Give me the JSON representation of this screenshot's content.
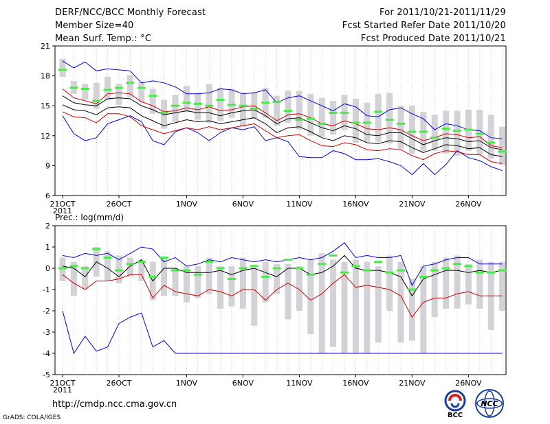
{
  "header": {
    "title": "DERF/NCC/BCC Monthly Forecast",
    "member": "Member Size=40",
    "variable": "Mean Surf. Temp.: °C",
    "period": "For 2011/10/21-2011/11/29",
    "started": "Fcst Started Refer Date 2011/10/20",
    "produced": "Fcst Produced Date 2011/10/21"
  },
  "footer": {
    "url": "http://cmdp.ncc.cma.gov.cn",
    "credit": "GrADS: COLA/IGES",
    "logo1_text": "BCC",
    "logo2_text": "NCC"
  },
  "colors": {
    "max": "#0000dd",
    "min": "#0000dd",
    "p_outer": "#cc0000",
    "median": "#000000",
    "green": "#44ee44",
    "box": "#d3d3d7"
  },
  "chart_data": [
    {
      "type": "box-ensemble",
      "title": "Mean Surf. Temp.: °C",
      "ylabel": "°C",
      "ylim": [
        6,
        21
      ],
      "yticks": [
        6,
        9,
        12,
        15,
        18,
        21
      ],
      "xtick_labels": [
        "21OCT",
        "26OCT",
        "1NOV",
        "6NOV",
        "11NOV",
        "16NOV",
        "21NOV",
        "26NOV"
      ],
      "xtick_days": [
        0,
        5,
        11,
        16,
        21,
        26,
        31,
        36
      ],
      "year_label": "2011",
      "days": 40,
      "series": [
        {
          "name": "max",
          "values": [
            19.5,
            18.8,
            19.4,
            18.5,
            18.7,
            18.6,
            18.5,
            17.3,
            17.5,
            17.3,
            16.9,
            16.2,
            16.2,
            16.3,
            16.7,
            16.6,
            16.2,
            16.3,
            16.6,
            15.3,
            15.8,
            16.0,
            15.5,
            15.0,
            14.5,
            15.2,
            14.9,
            14.0,
            13.9,
            14.6,
            14.8,
            14.2,
            13.7,
            12.6,
            13.2,
            13.0,
            12.6,
            12.5,
            11.8,
            11.7
          ]
        },
        {
          "name": "p90",
          "values": [
            16.7,
            15.8,
            15.5,
            15.2,
            16.2,
            16.3,
            16.2,
            15.4,
            15.0,
            14.4,
            14.5,
            14.8,
            14.6,
            14.9,
            14.5,
            14.6,
            14.9,
            15.0,
            14.3,
            13.5,
            14.1,
            14.2,
            13.8,
            13.2,
            13.0,
            13.5,
            13.2,
            12.7,
            12.6,
            12.8,
            12.6,
            12.0,
            11.5,
            11.8,
            12.2,
            12.1,
            11.8,
            11.9,
            11.0,
            10.8
          ]
        },
        {
          "name": "median",
          "values": [
            16.0,
            15.3,
            15.1,
            15.0,
            15.7,
            15.8,
            15.7,
            15.0,
            14.6,
            14.1,
            14.3,
            14.5,
            14.3,
            14.3,
            14.0,
            14.3,
            14.5,
            14.6,
            14.0,
            13.2,
            13.7,
            13.8,
            13.3,
            12.8,
            12.5,
            13.0,
            12.7,
            12.1,
            12.0,
            12.3,
            12.3,
            11.7,
            11.1,
            11.5,
            11.8,
            11.7,
            11.4,
            11.5,
            10.8,
            10.6
          ]
        },
        {
          "name": "p50",
          "values": [
            15.1,
            14.6,
            14.5,
            14.1,
            14.8,
            14.9,
            14.8,
            14.0,
            13.5,
            13.0,
            13.3,
            13.6,
            13.4,
            13.5,
            13.2,
            13.4,
            13.6,
            13.8,
            13.2,
            12.3,
            12.8,
            12.9,
            12.4,
            11.8,
            11.5,
            12.0,
            11.8,
            11.3,
            11.2,
            11.5,
            11.4,
            10.8,
            10.3,
            10.7,
            11.1,
            11.0,
            10.7,
            10.8,
            10.1,
            9.9
          ]
        },
        {
          "name": "p10",
          "values": [
            14.4,
            13.9,
            13.8,
            13.3,
            14.2,
            14.2,
            13.9,
            13.0,
            12.6,
            12.2,
            12.5,
            12.8,
            12.6,
            12.9,
            12.6,
            12.8,
            13.0,
            13.2,
            12.5,
            11.8,
            12.0,
            12.1,
            11.5,
            11.0,
            10.9,
            11.3,
            11.1,
            10.6,
            10.5,
            10.7,
            10.6,
            10.0,
            9.6,
            10.2,
            10.5,
            10.4,
            10.1,
            10.1,
            9.4,
            9.2
          ]
        },
        {
          "name": "min",
          "values": [
            14.0,
            12.2,
            11.5,
            11.8,
            13.2,
            13.6,
            14.0,
            13.4,
            11.5,
            11.1,
            12.4,
            12.8,
            12.3,
            11.5,
            12.3,
            12.8,
            12.6,
            12.9,
            11.5,
            11.8,
            11.4,
            9.9,
            9.8,
            9.8,
            10.5,
            10.2,
            9.6,
            9.6,
            9.7,
            9.4,
            9.0,
            8.1,
            9.2,
            8.1,
            9.1,
            10.5,
            9.8,
            9.5,
            8.9,
            8.5
          ]
        },
        {
          "name": "green",
          "values": [
            18.6,
            16.8,
            16.7,
            15.5,
            16.6,
            16.8,
            17.3,
            16.8,
            16.0,
            14.3,
            15.0,
            15.3,
            15.2,
            15.0,
            15.6,
            15.1,
            15.0,
            14.7,
            15.3,
            15.4,
            14.5,
            13.6,
            13.7,
            13.2,
            14.3,
            14.3,
            13.3,
            13.3,
            14.4,
            13.6,
            13.2,
            12.4,
            12.4,
            11.8,
            12.7,
            12.5,
            12.6,
            12.2,
            11.3,
            10.4
          ]
        },
        {
          "name": "box_high",
          "values": [
            19.7,
            17.5,
            17.2,
            17.3,
            17.9,
            17.2,
            18.1,
            17.4,
            16.7,
            15.6,
            16.1,
            17.0,
            16.3,
            17.2,
            16.8,
            16.7,
            16.3,
            16.4,
            16.8,
            16.0,
            16.5,
            16.5,
            16.2,
            15.8,
            15.5,
            16.1,
            15.7,
            15.3,
            16.2,
            16.3,
            15.0,
            15.0,
            14.4,
            14.1,
            14.5,
            14.5,
            14.6,
            14.6,
            14.1,
            12.9
          ]
        },
        {
          "name": "box_low",
          "values": [
            17.9,
            16.2,
            15.6,
            14.7,
            15.6,
            15.1,
            15.8,
            15.4,
            14.2,
            12.7,
            13.4,
            14.4,
            13.6,
            13.3,
            13.5,
            13.8,
            12.9,
            13.7,
            13.8,
            13.0,
            13.3,
            12.6,
            12.0,
            11.9,
            12.1,
            12.6,
            11.3,
            11.4,
            11.4,
            11.2,
            10.7,
            10.2,
            10.4,
            10.5,
            10.2,
            10.0,
            10.5,
            10.1,
            9.7,
            9.1
          ]
        }
      ]
    },
    {
      "type": "box-ensemble",
      "title": "Prec.: log(mm/d)",
      "ylabel": "log(mm/d)",
      "ylim": [
        -5,
        2
      ],
      "yticks": [
        -5,
        -4,
        -3,
        -2,
        -1,
        0,
        1,
        2
      ],
      "xtick_labels": [
        "21OCT",
        "26OCT",
        "1NOV",
        "6NOV",
        "11NOV",
        "16NOV",
        "21NOV",
        "26NOV"
      ],
      "xtick_days": [
        0,
        5,
        11,
        16,
        21,
        26,
        31,
        36
      ],
      "year_label": "2011",
      "days": 40,
      "series": [
        {
          "name": "max",
          "values": [
            0.6,
            0.5,
            0.7,
            0.6,
            0.7,
            0.4,
            0.7,
            1.0,
            0.9,
            0.3,
            0.5,
            0.1,
            0.2,
            0.4,
            0.3,
            0.5,
            0.4,
            0.3,
            0.4,
            0.3,
            0.4,
            0.5,
            0.4,
            0.5,
            0.8,
            1.2,
            0.5,
            0.6,
            0.5,
            0.5,
            0.6,
            -0.8,
            0.1,
            0.2,
            0.4,
            0.5,
            0.5,
            0.2,
            0.2,
            0.2
          ]
        },
        {
          "name": "median",
          "values": [
            0.1,
            0.0,
            -0.4,
            0.3,
            0.0,
            -0.4,
            0.1,
            0.4,
            -0.6,
            0.0,
            0.0,
            -0.2,
            -0.2,
            -0.2,
            -0.1,
            -0.3,
            -0.1,
            0.0,
            -0.2,
            -0.4,
            0.0,
            0.0,
            -0.3,
            -0.2,
            0.1,
            0.6,
            0.0,
            -0.1,
            -0.1,
            -0.2,
            -0.4,
            -1.3,
            -0.5,
            -0.3,
            -0.1,
            -0.1,
            -0.2,
            -0.1,
            -0.2,
            -0.1
          ]
        },
        {
          "name": "p_outer",
          "values": [
            -0.3,
            -0.7,
            -1.0,
            -0.6,
            -0.6,
            -0.5,
            -0.3,
            -0.3,
            -1.4,
            -0.8,
            -1.1,
            -1.2,
            -1.3,
            -1.0,
            -1.1,
            -1.3,
            -1.0,
            -1.0,
            -1.5,
            -1.0,
            -0.7,
            -1.0,
            -1.5,
            -1.2,
            -0.7,
            -0.3,
            -0.9,
            -0.8,
            -0.9,
            -1.0,
            -1.3,
            -2.3,
            -1.6,
            -1.4,
            -1.4,
            -1.2,
            -1.1,
            -1.3,
            -1.3,
            -1.3
          ]
        },
        {
          "name": "min",
          "values": [
            -2.0,
            -4.0,
            -3.2,
            -3.9,
            -3.7,
            -2.6,
            -2.3,
            -2.1,
            -3.7,
            -3.4,
            -4.0,
            -4.0,
            -4.0,
            -4.0,
            -4.0,
            -4.0,
            -4.0,
            -4.0,
            -4.0,
            -4.0,
            -4.0,
            -4.0,
            -4.0,
            -4.0,
            -4.0,
            -4.0,
            -4.0,
            -4.0,
            -4.0,
            -4.0,
            -4.0,
            -4.0,
            -4.0,
            -4.0,
            -4.0,
            -4.0,
            -4.0,
            -4.0,
            -4.0,
            -4.0
          ]
        },
        {
          "name": "green",
          "values": [
            0.0,
            0.1,
            0.0,
            0.9,
            0.5,
            -0.1,
            0.2,
            0.3,
            -0.4,
            0.5,
            -0.1,
            -0.1,
            -0.3,
            0.3,
            0.0,
            -0.5,
            0.0,
            0.1,
            -0.4,
            0.0,
            0.4,
            0.0,
            -0.3,
            0.2,
            0.6,
            -0.2,
            0.1,
            -0.1,
            0.3,
            -0.2,
            -0.1,
            -1.0,
            -0.4,
            -0.1,
            0.0,
            0.2,
            0.1,
            -0.2,
            -0.2,
            -0.1
          ]
        },
        {
          "name": "box_high",
          "values": [
            0.5,
            0.3,
            0.1,
            1.0,
            0.8,
            0.6,
            0.5,
            0.4,
            0.3,
            0.5,
            0.0,
            0.1,
            0.1,
            0.5,
            0.1,
            0.1,
            0.5,
            0.0,
            0.3,
            0.2,
            0.2,
            0.1,
            0.4,
            0.7,
            0.4,
            0.3,
            0.4,
            0.3,
            0.1,
            0.6,
            0.3,
            -0.5,
            0.1,
            0.3,
            0.5,
            0.6,
            0.2,
            0.4,
            0.3,
            0.3
          ]
        },
        {
          "name": "box_low",
          "values": [
            -0.6,
            -1.3,
            -1.0,
            -0.4,
            -0.6,
            -0.7,
            -0.4,
            -0.6,
            -1.5,
            -1.3,
            -1.3,
            -1.6,
            -1.4,
            -1.2,
            -1.9,
            -1.8,
            -1.9,
            -2.7,
            -1.6,
            -1.2,
            -2.4,
            -2.0,
            -3.1,
            -4.0,
            -3.7,
            -4.0,
            -4.0,
            -4.0,
            -3.5,
            -2.0,
            -3.5,
            -3.4,
            -4.0,
            -2.3,
            -1.9,
            -1.9,
            -1.7,
            -1.9,
            -2.9,
            -2.0
          ]
        }
      ]
    }
  ]
}
